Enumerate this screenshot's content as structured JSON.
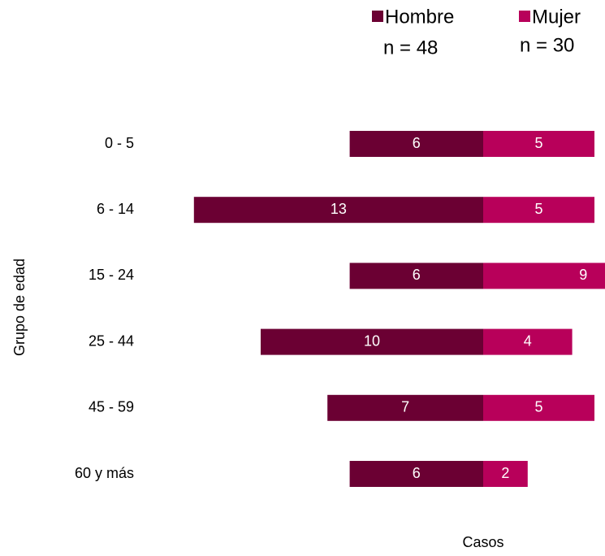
{
  "chart_data": {
    "type": "bar",
    "orientation": "horizontal",
    "pyramid": true,
    "x_label": "Casos",
    "y_label": "Grupo de edad",
    "categories": [
      "0 - 5",
      "6 - 14",
      "15 - 24",
      "25 - 44",
      "45 - 59",
      "60 y más"
    ],
    "series": [
      {
        "name": "Hombre",
        "n_label": "n = 48",
        "color": "#6b0033",
        "values": [
          6,
          13,
          6,
          10,
          7,
          6
        ]
      },
      {
        "name": "Mujer",
        "n_label": "n = 30",
        "color": "#b8005a",
        "values": [
          5,
          5,
          9,
          4,
          5,
          2
        ]
      }
    ]
  }
}
